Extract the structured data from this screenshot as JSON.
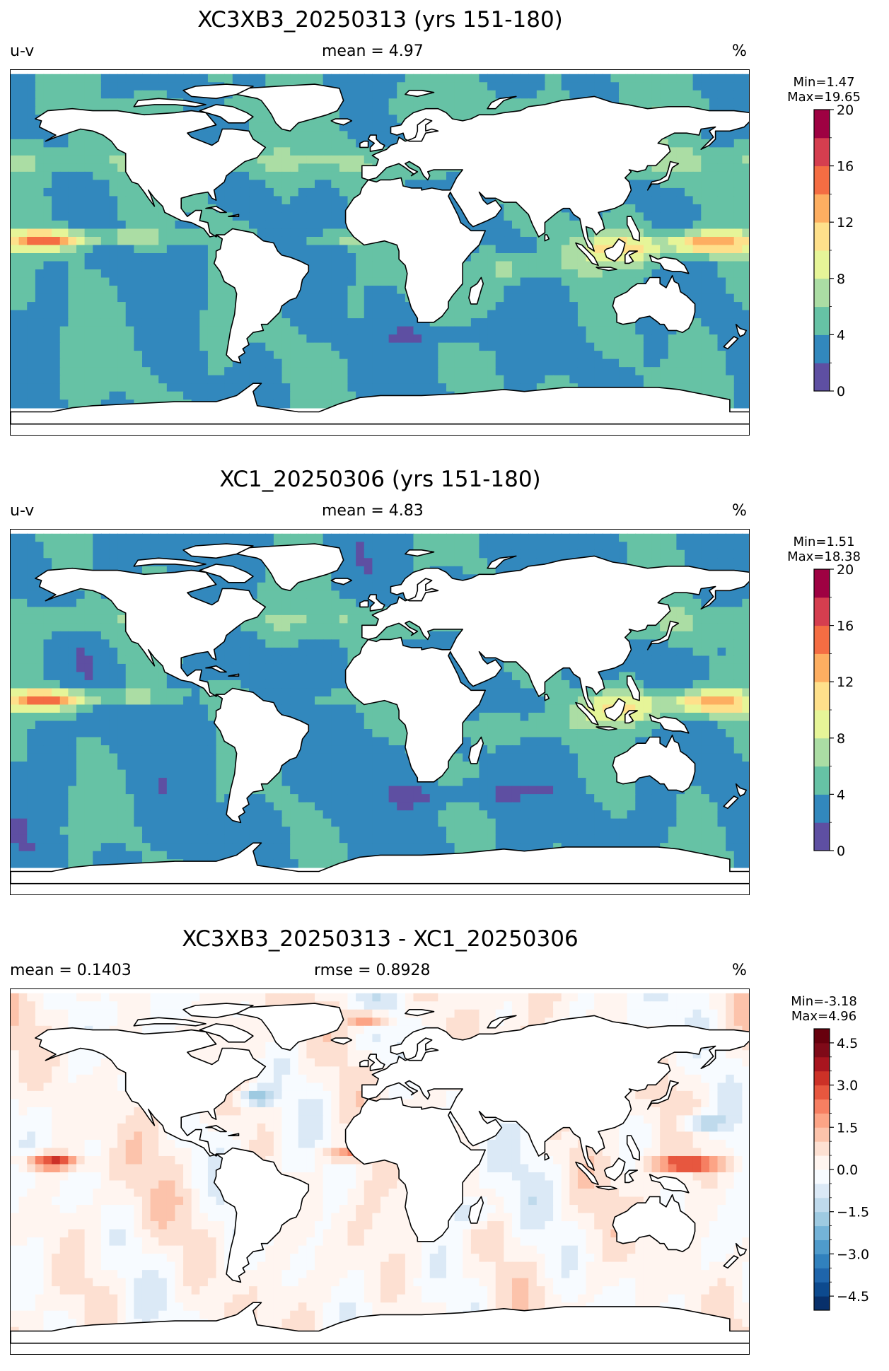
{
  "panels": [
    {
      "title": "XC3XB3_20250313 (yrs 151-180)",
      "left_label": "u-v",
      "center_label": "mean = 4.97",
      "right_label": "%",
      "min_label": "Min=1.47",
      "max_label": "Max=19.65",
      "ticks": [
        "0",
        "4",
        "8",
        "12",
        "16",
        "20"
      ],
      "colors": [
        "#5e4fa2",
        "#3288bd",
        "#66c2a5",
        "#abdda4",
        "#e6f598",
        "#fee08b",
        "#fdae61",
        "#f46d43",
        "#d53e4f",
        "#9e0142"
      ]
    },
    {
      "title": "XC1_20250306 (yrs 151-180)",
      "left_label": "u-v",
      "center_label": "mean = 4.83",
      "right_label": "%",
      "min_label": "Min=1.51",
      "max_label": "Max=18.38",
      "ticks": [
        "0",
        "4",
        "8",
        "12",
        "16",
        "20"
      ],
      "colors": [
        "#5e4fa2",
        "#3288bd",
        "#66c2a5",
        "#abdda4",
        "#e6f598",
        "#fee08b",
        "#fdae61",
        "#f46d43",
        "#d53e4f",
        "#9e0142"
      ]
    },
    {
      "title": "XC3XB3_20250313 - XC1_20250306",
      "left_label": "mean = 0.1403",
      "center_label": "rmse = 0.8928",
      "right_label": "%",
      "min_label": "Min=-3.18",
      "max_label": "Max=4.96",
      "ticks": [
        "−4.5",
        "−3.0",
        "−1.5",
        "0.0",
        "1.5",
        "3.0",
        "4.5"
      ],
      "colors": [
        "#08306b",
        "#0d4a8e",
        "#1f65ab",
        "#3181bd",
        "#4f9bcb",
        "#74b3d8",
        "#9ecae1",
        "#bfdaec",
        "#dbe9f6",
        "#f7fbff",
        "#fff5f0",
        "#fde0d2",
        "#fcc3ab",
        "#fca486",
        "#f67f62",
        "#e7573f",
        "#cc3127",
        "#a8151f",
        "#7f0a18",
        "#67000d"
      ]
    }
  ]
}
